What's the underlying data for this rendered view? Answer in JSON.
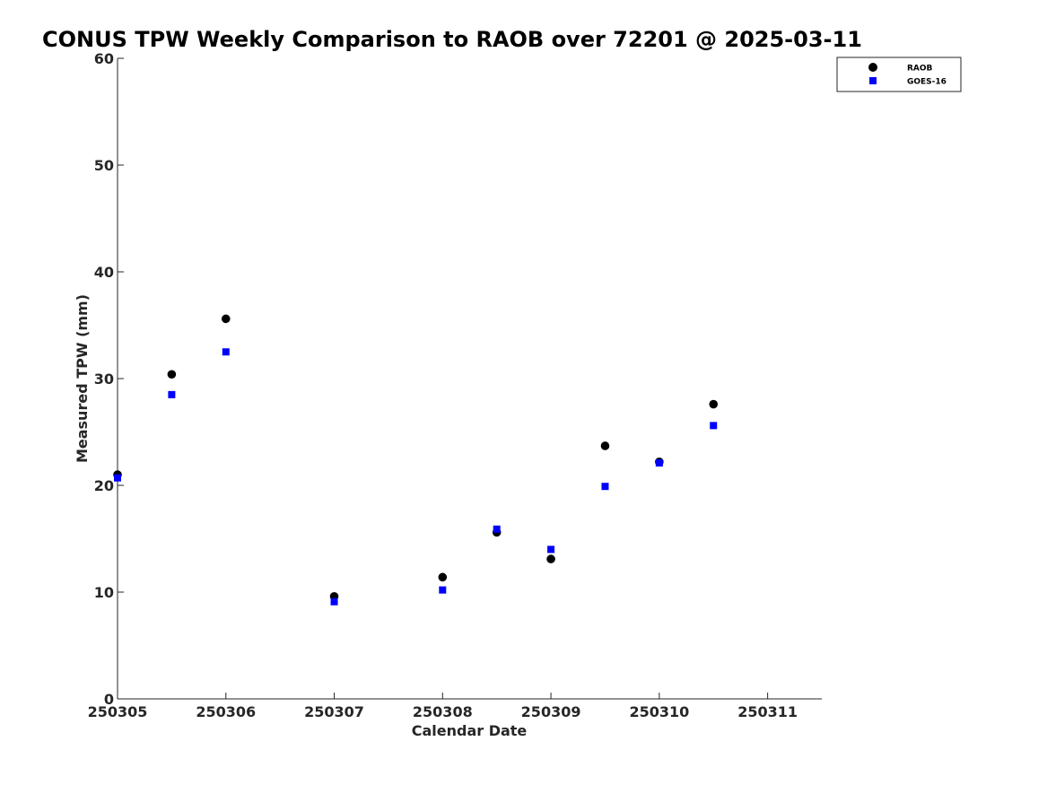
{
  "chart_data": {
    "type": "scatter",
    "title": "CONUS TPW Weekly Comparison to RAOB over 72201 @ 2025-03-11",
    "xlabel": "Calendar Date",
    "ylabel": "Measured TPW (mm)",
    "xlim": [
      250305,
      250311.5
    ],
    "ylim": [
      0,
      60
    ],
    "x_ticks": [
      250305,
      250306,
      250307,
      250308,
      250309,
      250310,
      250311
    ],
    "x_tick_labels": [
      "250305",
      "250306",
      "250307",
      "250308",
      "250309",
      "250310",
      "250311"
    ],
    "y_ticks": [
      0,
      10,
      20,
      30,
      40,
      50,
      60
    ],
    "y_tick_labels": [
      "0",
      "10",
      "20",
      "30",
      "40",
      "50",
      "60"
    ],
    "grid": false,
    "legend_position": "top-right",
    "series": [
      {
        "name": "RAOB",
        "marker": "circle",
        "color": "#000000",
        "x": [
          250305,
          250305.5,
          250306,
          250307,
          250308,
          250308.5,
          250309,
          250309.5,
          250310,
          250310.5
        ],
        "y": [
          21.0,
          30.4,
          35.6,
          9.6,
          11.4,
          15.6,
          13.1,
          23.7,
          22.2,
          27.6
        ]
      },
      {
        "name": "GOES-16",
        "marker": "square",
        "color": "#0000ff",
        "x": [
          250305,
          250305.5,
          250306,
          250307,
          250308,
          250308.5,
          250309,
          250309.5,
          250310,
          250310.5
        ],
        "y": [
          20.7,
          28.5,
          32.5,
          9.1,
          10.2,
          15.9,
          14.0,
          19.9,
          22.1,
          25.6
        ]
      }
    ]
  }
}
